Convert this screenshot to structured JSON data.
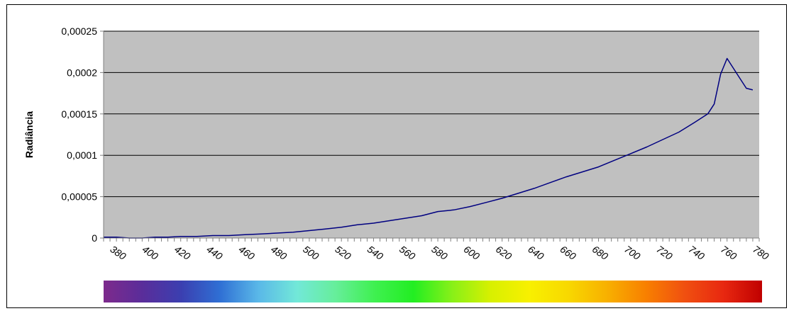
{
  "chart_data": {
    "type": "line",
    "title": "",
    "xlabel": "",
    "ylabel": "Radiância",
    "xlim": [
      372,
      780
    ],
    "ylim": [
      0,
      0.00025
    ],
    "x_tick_values": [
      380,
      400,
      420,
      440,
      460,
      480,
      500,
      520,
      540,
      560,
      580,
      600,
      620,
      640,
      660,
      680,
      700,
      720,
      740,
      760,
      780
    ],
    "x_tick_labels": [
      "380",
      "400",
      "420",
      "440",
      "460",
      "480",
      "500",
      "520",
      "540",
      "560",
      "580",
      "600",
      "620",
      "640",
      "660",
      "680",
      "700",
      "720",
      "740",
      "760",
      "780"
    ],
    "y_tick_values": [
      0,
      5e-05,
      0.0001,
      0.00015,
      0.0002,
      0.00025
    ],
    "y_tick_labels": [
      "0",
      "0,00005",
      "0,0001",
      "0,00015",
      "0,0002",
      "0,00025"
    ],
    "grid": true,
    "legend": "none",
    "colors": {
      "plot_background": "#c0c0c0",
      "line": "#000080",
      "gridline": "#000000"
    },
    "series": [
      {
        "x": [
          372,
          380,
          388,
          396,
          404,
          412,
          420,
          430,
          440,
          450,
          460,
          470,
          480,
          490,
          500,
          510,
          520,
          530,
          540,
          550,
          560,
          570,
          580,
          585,
          590,
          600,
          610,
          620,
          630,
          640,
          650,
          660,
          670,
          680,
          690,
          700,
          710,
          720,
          730,
          740,
          748,
          752,
          756,
          760,
          764,
          768,
          772,
          776
        ],
        "y": [
          1e-06,
          1e-06,
          0.0,
          0.0,
          1e-06,
          1e-06,
          2e-06,
          2e-06,
          3e-06,
          3e-06,
          4e-06,
          5e-06,
          6e-06,
          7e-06,
          9e-06,
          1.1e-05,
          1.3e-05,
          1.6e-05,
          1.8e-05,
          2.1e-05,
          2.4e-05,
          2.7e-05,
          3.2e-05,
          3.3e-05,
          3.4e-05,
          3.8e-05,
          4.3e-05,
          4.8e-05,
          5.4e-05,
          6e-05,
          6.7e-05,
          7.4e-05,
          8e-05,
          8.6e-05,
          9.4e-05,
          0.000102,
          0.00011,
          0.000119,
          0.000128,
          0.00014,
          0.00015,
          0.000162,
          0.000198,
          0.000217,
          0.000205,
          0.000193,
          0.000181,
          0.000179
        ]
      }
    ],
    "spectrum_bar": {
      "colors": [
        "#7d2a8c",
        "#5a2d9a",
        "#3b3fb0",
        "#2f6fd4",
        "#5ab8e8",
        "#72e8d8",
        "#66ee9a",
        "#3ff050",
        "#22ee22",
        "#88f018",
        "#d8f000",
        "#f8f000",
        "#f8d800",
        "#f8b000",
        "#f88000",
        "#f05010",
        "#e82810",
        "#c00000"
      ]
    }
  }
}
